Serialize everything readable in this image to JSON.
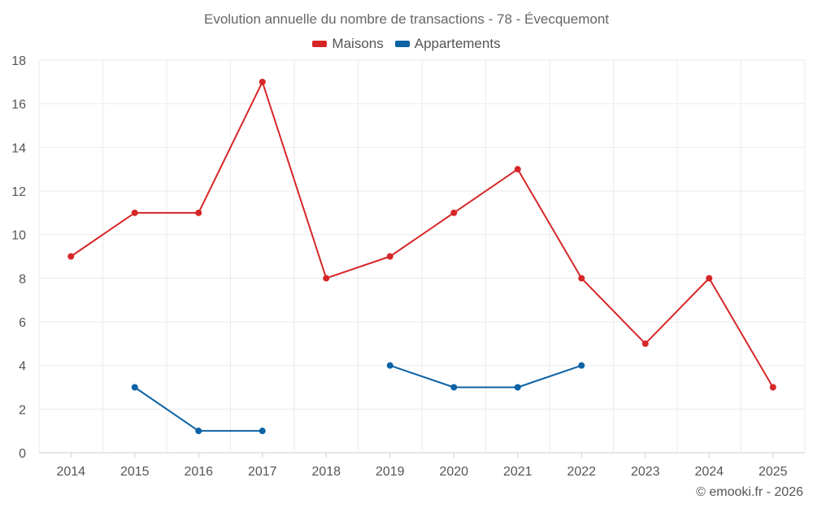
{
  "chart_data": {
    "type": "line",
    "title": "Evolution annuelle du nombre de transactions - 78 - Évecquemont",
    "categories": [
      "2014",
      "2015",
      "2016",
      "2017",
      "2018",
      "2019",
      "2020",
      "2021",
      "2022",
      "2023",
      "2024",
      "2025"
    ],
    "series": [
      {
        "name": "Maisons",
        "color": "#d62728",
        "values": [
          9,
          11,
          11,
          17,
          8,
          9,
          11,
          13,
          8,
          5,
          8,
          3
        ]
      },
      {
        "name": "Appartements",
        "color": "#0b62a4",
        "values": [
          null,
          3,
          1,
          1,
          null,
          4,
          3,
          3,
          4,
          null,
          null,
          null
        ]
      }
    ],
    "ylim": [
      0,
      18
    ],
    "yticks": [
      0,
      2,
      4,
      6,
      8,
      10,
      12,
      14,
      16,
      18
    ],
    "xlabel": "",
    "ylabel": "",
    "grid": true,
    "legend_position": "top-center"
  },
  "credit": "© emooki.fr - 2026"
}
